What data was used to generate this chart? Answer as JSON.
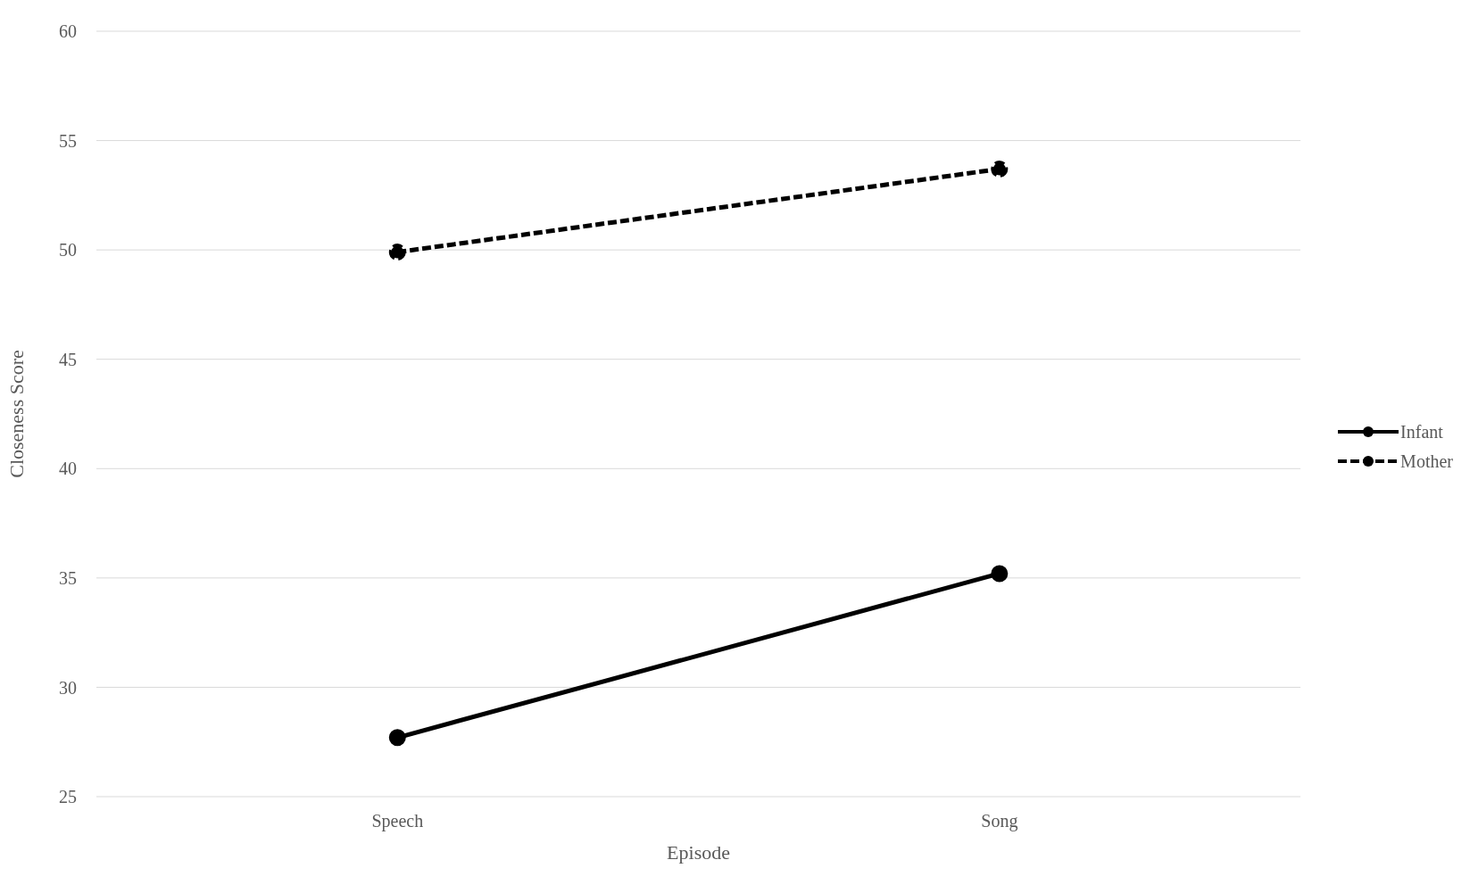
{
  "chart_data": {
    "type": "line",
    "xlabel": "Episode",
    "ylabel": "Closeness Score",
    "categories": [
      "Speech",
      "Song"
    ],
    "series": [
      {
        "name": "Infant",
        "color": "#000000",
        "line_style": "solid",
        "values": [
          27.7,
          35.2
        ]
      },
      {
        "name": "Mother",
        "color": "#000000",
        "line_style": "dashed",
        "values": [
          49.9,
          53.7
        ]
      }
    ],
    "ylim": [
      25,
      60
    ],
    "yticks": [
      25,
      30,
      35,
      40,
      45,
      50,
      55,
      60
    ],
    "grid": "y",
    "legend": "right",
    "marker": "circle"
  }
}
